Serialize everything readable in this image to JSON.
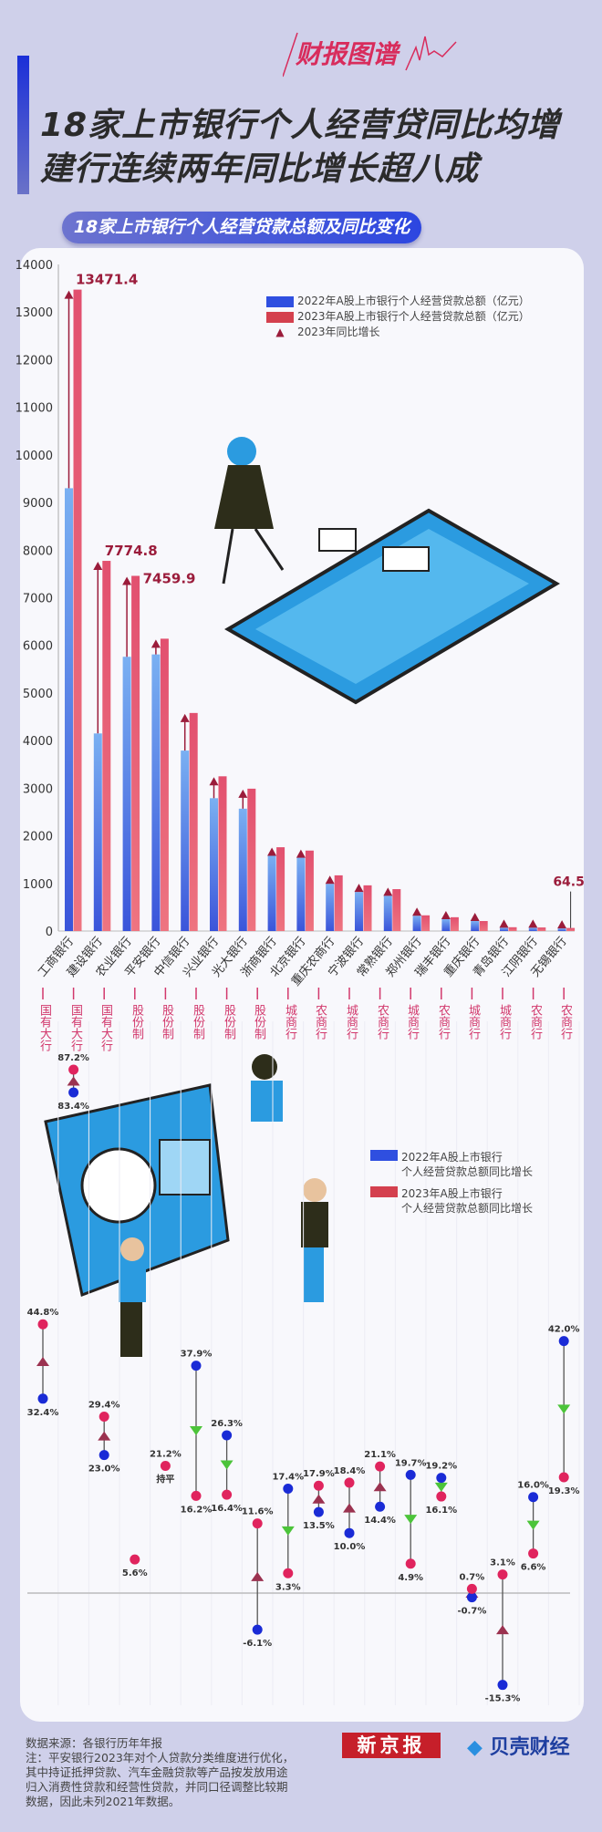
{
  "brand": "财报图谱",
  "title_lines": [
    "18家上市银行个人经营贷同比均增",
    "建行连续两年同比增长超八成"
  ],
  "subtitle": "18家上市银行个人经营贷款总额及同比变化",
  "colors": {
    "bar2022": "#4a6ee6",
    "bar2023": "#e65a78",
    "arrow": "#9b1c3b",
    "dot2022": "#1a2bd6",
    "dot2023": "#e0245e",
    "down": "#4cc43a",
    "type_label": "#d2386c",
    "background": "#cfd0ea"
  },
  "chart_data": [
    {
      "type": "bar",
      "ylim": [
        0,
        14000
      ],
      "yticks": [
        "0",
        "1000",
        "2000",
        "3000",
        "4000",
        "5000",
        "6000",
        "7000",
        "8000",
        "9000",
        "10000",
        "11000",
        "12000",
        "13000",
        "14000"
      ],
      "legend": [
        "2022年A股上市银行个人经营贷款总额（亿元）",
        "2023年A股上市银行个人经营贷款总额（亿元）",
        "2023年同比增长"
      ],
      "legend_position": "top-right",
      "categories": [
        "工商银行",
        "建设银行",
        "农业银行",
        "平安银行",
        "中信银行",
        "兴业银行",
        "光大银行",
        "浙商银行",
        "北京银行",
        "重庆农商行",
        "宁波银行",
        "常熟银行",
        "郑州银行",
        "瑞丰银行",
        "重庆银行",
        "青岛银行",
        "江阴银行",
        "无锡银行"
      ],
      "bank_types": [
        "国有大行",
        "国有大行",
        "国有大行",
        "股份制",
        "股份制",
        "股份制",
        "股份制",
        "股份制",
        "城商行",
        "农商行",
        "城商行",
        "农商行",
        "城商行",
        "农商行",
        "城商行",
        "城商行",
        "农商行",
        "农商行"
      ],
      "series": [
        {
          "name": "2022年A股上市银行个人经营贷款总额（亿元）",
          "values": [
            9300,
            4150,
            5760,
            5810,
            3790,
            2790,
            2570,
            1580,
            1540,
            990,
            820,
            740,
            320,
            250,
            210,
            70,
            70,
            55
          ]
        },
        {
          "name": "2023年A股上市银行个人经营贷款总额（亿元）",
          "values": [
            13471.4,
            7774.8,
            7459.9,
            6140,
            4580,
            3250,
            2990,
            1760,
            1690,
            1170,
            960,
            880,
            330,
            290,
            210,
            80,
            75,
            64.5
          ]
        }
      ],
      "data_labels": {
        "0": "13471.4",
        "1": "7774.8",
        "2": "7459.9",
        "17": "64.5"
      }
    },
    {
      "type": "scatter",
      "legend": [
        "2022年A股上市银行个人经营贷款总额同比增长",
        "2023年A股上市银行个人经营贷款总额同比增长"
      ],
      "legend_display": [
        [
          "2022年A股上市银行",
          "个人经营贷款总额同比增长"
        ],
        [
          "2023年A股上市银行",
          "个人经营贷款总额同比增长"
        ]
      ],
      "categories": [
        "工商银行",
        "建设银行",
        "农业银行",
        "平安银行",
        "中信银行",
        "兴业银行",
        "光大银行",
        "浙商银行",
        "北京银行",
        "重庆农商行",
        "宁波银行",
        "常熟银行",
        "郑州银行",
        "瑞丰银行",
        "重庆银行",
        "青岛银行",
        "江阴银行",
        "无锡银行"
      ],
      "series": [
        {
          "name": "2022年A股上市银行个人经营贷款总额同比增长",
          "values": [
            32.4,
            83.4,
            23.0,
            null,
            21.2,
            37.9,
            26.3,
            -6.1,
            17.4,
            13.5,
            10.0,
            14.4,
            19.7,
            19.2,
            -0.7,
            -15.3,
            16.0,
            42.0
          ]
        },
        {
          "name": "2023年A股上市银行个人经营贷款总额同比增长",
          "values": [
            44.8,
            87.2,
            29.4,
            5.6,
            21.2,
            16.2,
            16.4,
            11.6,
            3.3,
            17.9,
            18.4,
            21.1,
            4.9,
            16.1,
            0.7,
            3.1,
            6.6,
            19.3
          ]
        }
      ],
      "unit": "%",
      "flat_label": "持平"
    }
  ],
  "footer": {
    "lines": [
      "数据来源：各银行历年年报",
      "注：平安银行2023年对个人贷款分类维度进行优化，",
      "其中持证抵押贷款、汽车金融贷款等产品按发放用途",
      "归入消费性贷款和经营性贷款，并同口径调整比较期",
      "数据，因此未列2021年数据。"
    ],
    "logo_xjb": "新京报",
    "logo_bk": "贝壳财经"
  }
}
